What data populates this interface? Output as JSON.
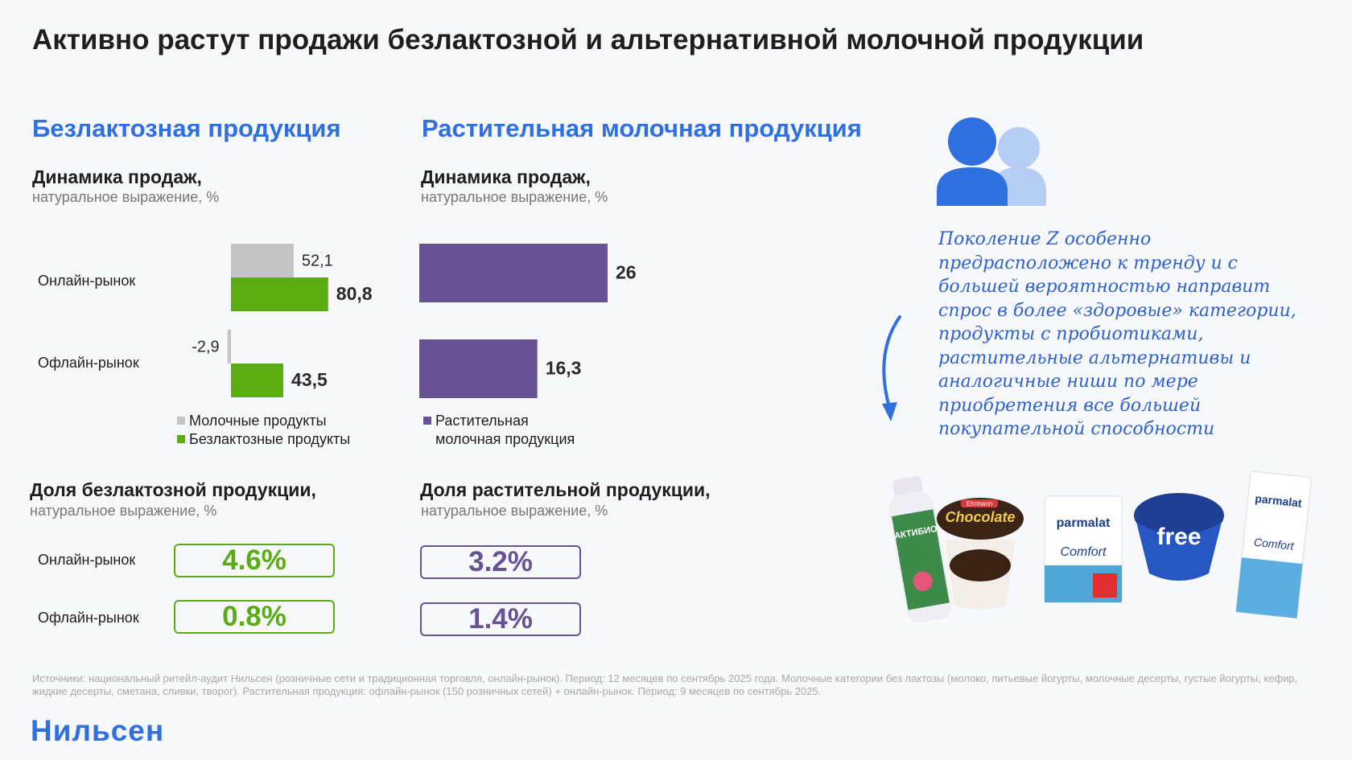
{
  "title": "Активно растут продажи безлактозной и альтернативной молочной продукции",
  "left": {
    "section_title": "Безлактозная продукция",
    "dynamics_title": "Динамика продаж,",
    "dynamics_note": "натуральное выражение, %",
    "rows": [
      "Онлайн-рынок",
      "Офлайн-рынок"
    ],
    "legend": [
      "Молочные продукты",
      "Безлактозные продукты"
    ],
    "share_title": "Доля безлактозной продукции,",
    "share_note": "натуральное выражение, %",
    "shares": [
      {
        "label": "Онлайн-рынок",
        "value": "4.6%"
      },
      {
        "label": "Офлайн-рынок",
        "value": "0.8%"
      }
    ]
  },
  "right": {
    "section_title": "Растительная молочная продукция",
    "dynamics_title": "Динамика продаж,",
    "dynamics_note": "натуральное выражение, %",
    "legend_line1": "Растительная",
    "legend_line2": "молочная продукция",
    "share_title": "Доля растительной продукции,",
    "share_note": "натуральное выражение, %",
    "shares": [
      {
        "value": "3.2%"
      },
      {
        "value": "1.4%"
      }
    ]
  },
  "quote": "Поколение Z особенно предрасположено к тренду и с большей вероятностью направит спрос в более «здоровые» категории, продукты с пробиотиками, растительные альтернативы и аналогичные ниши по мере приобретения все большей покупательной способности",
  "product_labels": {
    "aktibio": "АКТИБИО",
    "ehrmann": "Ehrmann",
    "chocolate": "Chocolate",
    "parmalat": "parmalat",
    "comfort": "Comfort",
    "free": "free"
  },
  "source": "Источники: национальный ритейл-аудит Нильсен (розничные сети и традиционная торговля, онлайн-рынок). Период: 12 месяцев по сентябрь 2025 года. Молочные категории без лактозы (молоко, питьевые йогурты, молочные десерты, густые йогурты, кефир, жидкие десерты, сметана, сливки, творог). Растительная продукция: офлайн-рынок (150 розничных сетей) + онлайн-рынок. Период: 9 месяцев по сентябрь 2025.",
  "logo": "Нильсен",
  "colors": {
    "accent_blue": "#2f6fe0",
    "dairy_gray": "#c4c4c4",
    "lactose_free_green": "#5aac12",
    "plant_purple": "#675393",
    "quote_blue": "#2f62c8"
  },
  "chart_data": [
    {
      "type": "bar",
      "orientation": "horizontal",
      "categories": [
        "Онлайн-рынок",
        "Офлайн-рынок"
      ],
      "series": [
        {
          "name": "Молочные продукты",
          "values": [
            52.1,
            -2.9
          ],
          "labels": [
            "52,1",
            "-2,9"
          ],
          "color": "#c4c4c4"
        },
        {
          "name": "Безлактозные продукты",
          "values": [
            80.8,
            43.5
          ],
          "labels": [
            "80,8",
            "43,5"
          ],
          "color": "#5aac12"
        }
      ],
      "legend_position": "bottom-left",
      "grid": false
    },
    {
      "type": "bar",
      "orientation": "horizontal",
      "categories": [
        "Онлайн-рынок",
        "Офлайн-рынок"
      ],
      "series": [
        {
          "name": "Растительная молочная продукция",
          "values": [
            26,
            16.3
          ],
          "labels": [
            "26",
            "16,3"
          ],
          "color": "#675393"
        }
      ],
      "legend_position": "bottom-left",
      "grid": false
    }
  ]
}
